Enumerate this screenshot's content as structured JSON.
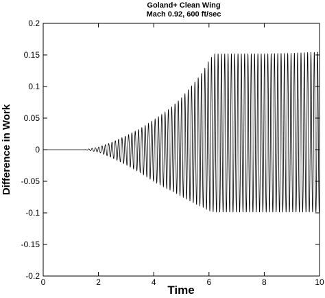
{
  "chart_data": {
    "type": "line",
    "title": "Goland+ Clean Wing",
    "subtitle": "Mach 0.92, 600 ft/sec",
    "xlabel": "Time",
    "ylabel": "Difference in Work",
    "xlim": [
      0,
      10
    ],
    "ylim": [
      -0.2,
      0.2
    ],
    "xticks": [
      "0",
      "2",
      "4",
      "6",
      "8",
      "10"
    ],
    "yticks": [
      "-0.2",
      "-0.15",
      "-0.1",
      "-0.05",
      "0",
      "0.05",
      "0.1",
      "0.15",
      "0.2"
    ],
    "grid": false,
    "line_color": "#000000",
    "series": [
      {
        "oscillation_onset_time": 1.5,
        "oscillation_period": 0.12,
        "envelope_time": [
          0,
          1.5,
          2.0,
          2.5,
          3.0,
          3.5,
          4.0,
          4.5,
          5.0,
          5.5,
          5.8,
          6.0,
          6.2,
          7.0,
          8.0,
          9.0,
          10.0
        ],
        "envelope_max": [
          0,
          0,
          0.004,
          0.012,
          0.022,
          0.033,
          0.047,
          0.062,
          0.082,
          0.108,
          0.125,
          0.142,
          0.152,
          0.152,
          0.152,
          0.153,
          0.155
        ],
        "envelope_min": [
          0,
          0,
          -0.004,
          -0.013,
          -0.024,
          -0.036,
          -0.05,
          -0.062,
          -0.074,
          -0.086,
          -0.092,
          -0.097,
          -0.099,
          -0.099,
          -0.099,
          -0.099,
          -0.099
        ]
      }
    ]
  }
}
